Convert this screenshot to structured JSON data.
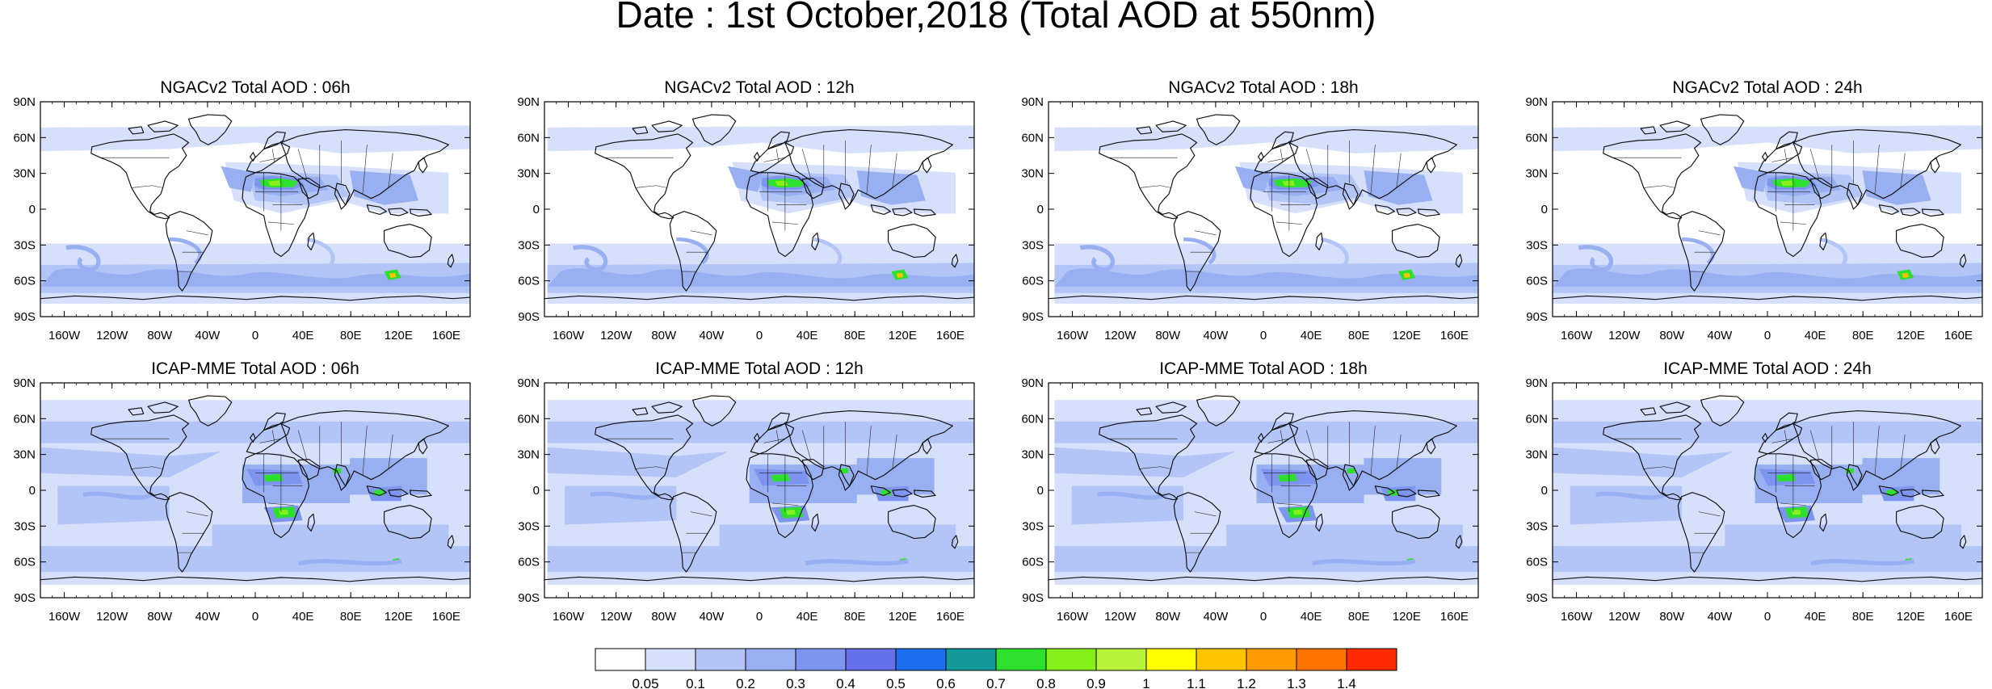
{
  "figure_title": "Date : 1st October,2018 (Total AOD at 550nm)",
  "lat_labels": [
    "90N",
    "60N",
    "30N",
    "0",
    "30S",
    "60S",
    "90S"
  ],
  "lon_labels": [
    "160W",
    "120W",
    "80W",
    "40W",
    "0",
    "40E",
    "80E",
    "120E",
    "160E"
  ],
  "colorbar": {
    "levels": [
      "0.05",
      "0.1",
      "0.2",
      "0.3",
      "0.4",
      "0.5",
      "0.6",
      "0.7",
      "0.8",
      "0.9",
      "1",
      "1.1",
      "1.2",
      "1.3",
      "1.4"
    ],
    "colors": [
      "#ffffff",
      "#d6e0fb",
      "#b3c4f6",
      "#98aff2",
      "#7d95ee",
      "#6670ea",
      "#1a6ef0",
      "#149a9a",
      "#2ee02e",
      "#86f01a",
      "#b8f23a",
      "#ffff00",
      "#ffc400",
      "#ff9b00",
      "#ff7300",
      "#ff2a00"
    ]
  },
  "panels": [
    {
      "title": "NGACv2 Total AOD : 06h",
      "model": "NGACv2",
      "hour": "06h"
    },
    {
      "title": "NGACv2 Total AOD : 12h",
      "model": "NGACv2",
      "hour": "12h"
    },
    {
      "title": "NGACv2 Total AOD : 18h",
      "model": "NGACv2",
      "hour": "18h"
    },
    {
      "title": "NGACv2 Total AOD : 24h",
      "model": "NGACv2",
      "hour": "24h"
    },
    {
      "title": "ICAP-MME Total AOD : 06h",
      "model": "ICAP-MME",
      "hour": "06h"
    },
    {
      "title": "ICAP-MME Total AOD : 12h",
      "model": "ICAP-MME",
      "hour": "12h"
    },
    {
      "title": "ICAP-MME Total AOD : 18h",
      "model": "ICAP-MME",
      "hour": "18h"
    },
    {
      "title": "ICAP-MME Total AOD : 24h",
      "model": "ICAP-MME",
      "hour": "24h"
    }
  ]
}
